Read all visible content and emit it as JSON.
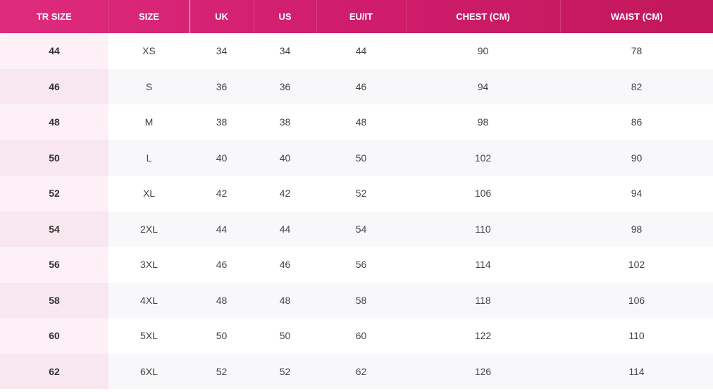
{
  "table": {
    "header": [
      "TR SIZE",
      "SIZE",
      "UK",
      "US",
      "EU/IT",
      "CHEST (CM)",
      "WAIST (CM)"
    ],
    "rows": [
      [
        44,
        "XS",
        34,
        34,
        44,
        90,
        78
      ],
      [
        46,
        "S",
        36,
        36,
        46,
        94,
        82
      ],
      [
        48,
        "M",
        38,
        38,
        48,
        98,
        86
      ],
      [
        50,
        "L",
        40,
        40,
        50,
        102,
        90
      ],
      [
        52,
        "XL",
        42,
        42,
        52,
        106,
        94
      ],
      [
        54,
        "2XL",
        44,
        44,
        54,
        110,
        98
      ],
      [
        56,
        "3XL",
        46,
        46,
        56,
        114,
        102
      ],
      [
        58,
        "4XL",
        48,
        48,
        58,
        118,
        106
      ],
      [
        60,
        "5XL",
        50,
        50,
        60,
        122,
        110
      ],
      [
        62,
        "6XL",
        52,
        52,
        62,
        126,
        114
      ]
    ]
  }
}
